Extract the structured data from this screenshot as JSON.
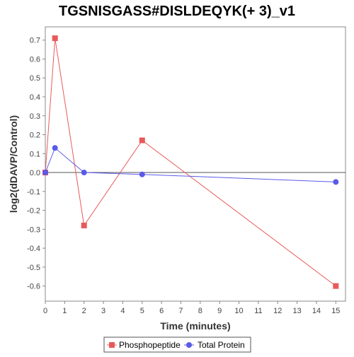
{
  "chart_data": {
    "type": "line",
    "title": "TGSNISGASS#DISLDEQYK(+ 3)_v1",
    "xlabel": "Time (minutes)",
    "ylabel": "log2(dDAVP/Control)",
    "xlim": [
      0,
      15.5
    ],
    "ylim": [
      -0.68,
      0.77
    ],
    "xticks": [
      0,
      1,
      2,
      3,
      4,
      5,
      6,
      7,
      8,
      9,
      10,
      11,
      12,
      13,
      14,
      15
    ],
    "yticks": [
      0.7,
      0.6,
      0.5,
      0.4,
      0.3,
      0.2,
      0.1,
      0.0,
      -0.1,
      -0.2,
      -0.3,
      -0.4,
      -0.5,
      -0.6
    ],
    "ytick_labels": [
      "0.7",
      "0.6",
      "0.5",
      "0.4",
      "0.3",
      "0.2",
      "0.1",
      "0.0",
      "-0.1",
      "-0.2",
      "-0.3",
      "-0.4",
      "-0.5",
      "-0.6"
    ],
    "grid": false,
    "zero_line": true,
    "legend_position": "bottom-center",
    "series": [
      {
        "name": "Phosphopeptide",
        "color": "#e85a5a",
        "marker": "square",
        "x": [
          0,
          0.5,
          2,
          5,
          15
        ],
        "values": [
          0.0,
          0.71,
          -0.28,
          0.17,
          -0.6
        ]
      },
      {
        "name": "Total Protein",
        "color": "#5a5ae8",
        "marker": "circle",
        "x": [
          0,
          0.5,
          2,
          5,
          15
        ],
        "values": [
          0.0,
          0.13,
          0.0,
          -0.01,
          -0.05
        ]
      }
    ]
  }
}
